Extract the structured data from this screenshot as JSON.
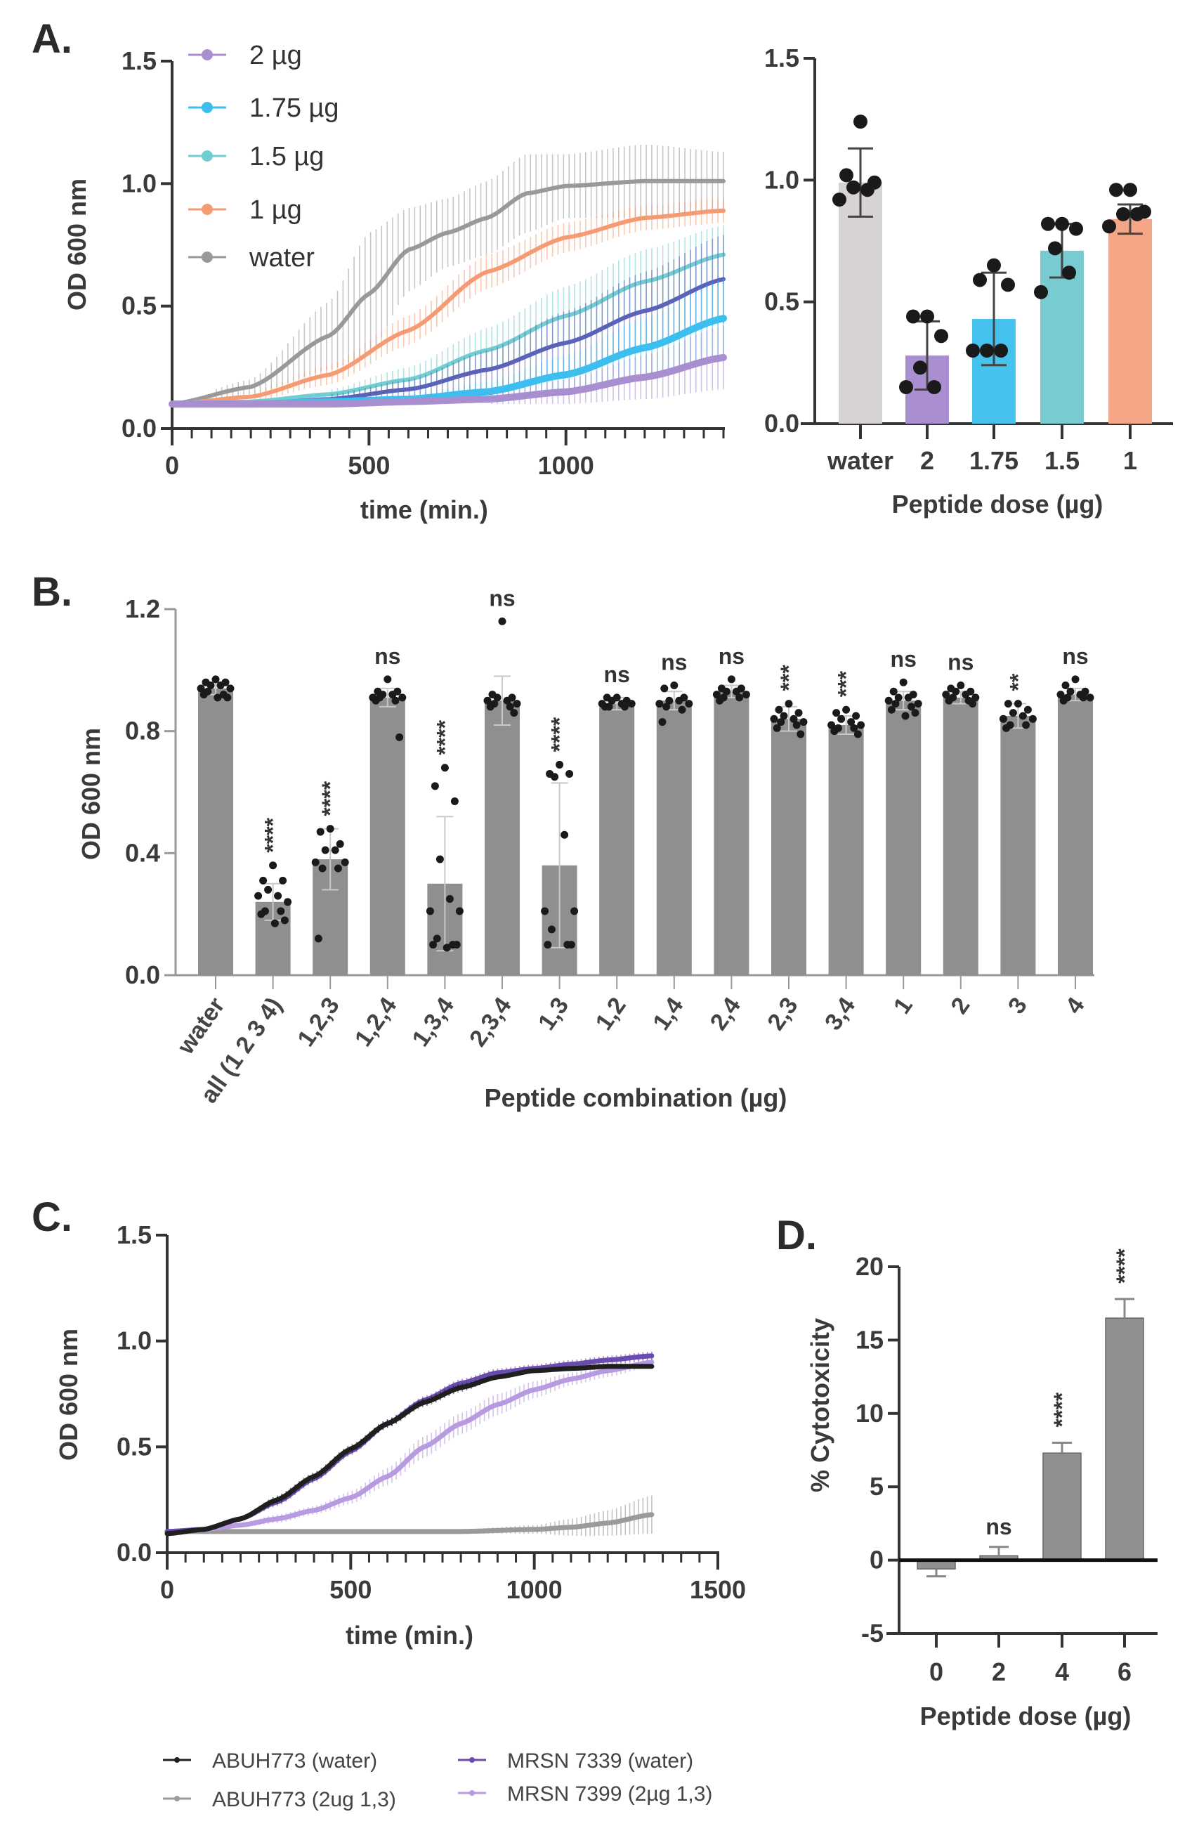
{
  "figure": {
    "panels": [
      "A.",
      "B.",
      "C.",
      "D."
    ]
  },
  "chart_data": [
    {
      "id": "A_left",
      "type": "line",
      "title": "",
      "xlabel": "time (min.)",
      "ylabel": "OD 600 nm",
      "xlim": [
        0,
        1400
      ],
      "ylim": [
        0,
        1.5
      ],
      "xticks": [
        0,
        500,
        1000
      ],
      "yticks": [
        "0.0",
        "0.5",
        "1.0",
        "1.5"
      ],
      "error_bars": true,
      "legend_position": "top-left",
      "series": [
        {
          "name": "2 µg",
          "color": "#a98fcf",
          "marker": "circle",
          "x": [
            0,
            200,
            400,
            600,
            800,
            1000,
            1200,
            1400
          ],
          "y": [
            0.1,
            0.1,
            0.1,
            0.11,
            0.12,
            0.15,
            0.21,
            0.29
          ],
          "err": [
            0.01,
            0.01,
            0.01,
            0.01,
            0.02,
            0.05,
            0.09,
            0.13
          ]
        },
        {
          "name": "1.75 µg",
          "color": "#3cbfef",
          "marker": "square",
          "x": [
            0,
            200,
            400,
            600,
            800,
            1000,
            1200,
            1400
          ],
          "y": [
            0.1,
            0.1,
            0.11,
            0.12,
            0.15,
            0.22,
            0.33,
            0.45
          ],
          "err": [
            0.01,
            0.01,
            0.01,
            0.02,
            0.04,
            0.08,
            0.12,
            0.16
          ]
        },
        {
          "name": "1.5 µg",
          "color": "#72cdd1",
          "marker": "triangle",
          "x": [
            0,
            200,
            400,
            600,
            800,
            1000,
            1200,
            1400
          ],
          "y": [
            0.1,
            0.11,
            0.14,
            0.2,
            0.32,
            0.46,
            0.6,
            0.71
          ],
          "err": [
            0.01,
            0.01,
            0.02,
            0.05,
            0.09,
            0.12,
            0.13,
            0.12
          ]
        },
        {
          "name": "1 µg",
          "color": "#f59b74",
          "marker": "triangle-down",
          "x": [
            0,
            200,
            400,
            600,
            800,
            1000,
            1200,
            1400
          ],
          "y": [
            0.1,
            0.13,
            0.22,
            0.4,
            0.64,
            0.78,
            0.86,
            0.89
          ],
          "err": [
            0.01,
            0.02,
            0.04,
            0.06,
            0.07,
            0.06,
            0.05,
            0.05
          ]
        },
        {
          "name": "water",
          "color": "#999999",
          "marker": "diamond",
          "x": [
            0,
            200,
            400,
            500,
            600,
            700,
            800,
            900,
            1000,
            1200,
            1400
          ],
          "y": [
            0.1,
            0.17,
            0.38,
            0.55,
            0.73,
            0.8,
            0.86,
            0.96,
            0.99,
            1.01,
            1.01
          ],
          "err": [
            0.01,
            0.03,
            0.14,
            0.25,
            0.17,
            0.14,
            0.15,
            0.16,
            0.13,
            0.15,
            0.12
          ]
        },
        {
          "name": "",
          "color": "#5b63b8",
          "marker": "none",
          "x": [
            0,
            200,
            400,
            600,
            800,
            1000,
            1200,
            1400
          ],
          "y": [
            0.1,
            0.1,
            0.12,
            0.16,
            0.24,
            0.35,
            0.48,
            0.61
          ],
          "err": [
            0.01,
            0.01,
            0.02,
            0.04,
            0.08,
            0.13,
            0.16,
            0.18
          ]
        }
      ]
    },
    {
      "id": "A_right",
      "type": "bar",
      "xlabel": "Peptide dose (µg)",
      "ylabel": "",
      "ylim": [
        0,
        1.5
      ],
      "yticks": [
        "0.0",
        "0.5",
        "1.0",
        "1.5"
      ],
      "categories": [
        "water",
        "2",
        "1.75",
        "1.5",
        "1"
      ],
      "colors": [
        "#d6d3d2",
        "#a98fcf",
        "#45c2ee",
        "#78ccd1",
        "#f5a686"
      ],
      "values": [
        0.99,
        0.28,
        0.43,
        0.71,
        0.84
      ],
      "err": [
        0.14,
        0.14,
        0.19,
        0.11,
        0.06
      ],
      "points": [
        [
          1.24,
          1.02,
          0.99,
          0.97,
          0.96,
          0.92
        ],
        [
          0.44,
          0.44,
          0.36,
          0.23,
          0.15,
          0.15
        ],
        [
          0.65,
          0.59,
          0.57,
          0.3,
          0.3,
          0.3
        ],
        [
          0.82,
          0.82,
          0.8,
          0.72,
          0.62,
          0.54
        ],
        [
          0.96,
          0.96,
          0.87,
          0.86,
          0.86,
          0.81
        ]
      ]
    },
    {
      "id": "B",
      "type": "bar",
      "xlabel": "Peptide combination (µg)",
      "ylabel": "OD 600 nm",
      "ylim": [
        0,
        1.2
      ],
      "yticks": [
        "0.0",
        "0.4",
        "0.8",
        "1.2"
      ],
      "color": "#8f8f8f",
      "categories": [
        "water",
        "all (1 2 3 4)",
        "1,2,3",
        "1,2,4",
        "1,3,4",
        "2,3,4",
        "1,3",
        "1,2",
        "1,4",
        "2,4",
        "2,3",
        "3,4",
        "1",
        "2",
        "3",
        "4"
      ],
      "values": [
        0.94,
        0.24,
        0.38,
        0.91,
        0.3,
        0.9,
        0.36,
        0.89,
        0.9,
        0.93,
        0.84,
        0.82,
        0.9,
        0.91,
        0.85,
        0.92
      ],
      "err": [
        0.02,
        0.06,
        0.1,
        0.03,
        0.22,
        0.08,
        0.27,
        0.02,
        0.03,
        0.02,
        0.04,
        0.03,
        0.03,
        0.02,
        0.04,
        0.02
      ],
      "annotations": [
        "",
        "****",
        "****",
        "ns",
        "****",
        "ns",
        "****",
        "ns",
        "ns",
        "ns",
        "***",
        "***",
        "ns",
        "ns",
        "**",
        "ns"
      ],
      "points": [
        [
          0.97,
          0.96,
          0.96,
          0.95,
          0.95,
          0.94,
          0.94,
          0.93,
          0.92,
          0.92,
          0.91,
          0.91
        ],
        [
          0.36,
          0.31,
          0.31,
          0.28,
          0.26,
          0.26,
          0.24,
          0.21,
          0.21,
          0.2,
          0.18,
          0.17
        ],
        [
          0.48,
          0.47,
          0.43,
          0.41,
          0.41,
          0.37,
          0.37,
          0.35,
          0.35,
          0.12
        ],
        [
          0.97,
          0.93,
          0.93,
          0.92,
          0.92,
          0.91,
          0.91,
          0.91,
          0.9,
          0.9,
          0.78
        ],
        [
          0.68,
          0.62,
          0.57,
          0.38,
          0.25,
          0.21,
          0.21,
          0.12,
          0.1,
          0.1,
          0.1,
          0.09
        ],
        [
          1.16,
          0.92,
          0.91,
          0.91,
          0.9,
          0.9,
          0.89,
          0.89,
          0.88,
          0.88,
          0.86
        ],
        [
          0.69,
          0.66,
          0.66,
          0.65,
          0.46,
          0.21,
          0.21,
          0.15,
          0.1,
          0.1,
          0.1
        ],
        [
          0.91,
          0.91,
          0.9,
          0.9,
          0.89,
          0.89,
          0.89,
          0.88,
          0.88,
          0.88
        ],
        [
          0.95,
          0.94,
          0.91,
          0.9,
          0.9,
          0.89,
          0.89,
          0.88,
          0.87,
          0.83
        ],
        [
          0.97,
          0.94,
          0.94,
          0.93,
          0.93,
          0.92,
          0.92,
          0.91,
          0.91,
          0.9
        ],
        [
          0.89,
          0.87,
          0.86,
          0.85,
          0.84,
          0.84,
          0.83,
          0.83,
          0.82,
          0.81,
          0.79
        ],
        [
          0.87,
          0.86,
          0.85,
          0.84,
          0.83,
          0.82,
          0.82,
          0.81,
          0.81,
          0.8,
          0.79
        ],
        [
          0.96,
          0.93,
          0.92,
          0.91,
          0.91,
          0.9,
          0.89,
          0.89,
          0.88,
          0.87,
          0.86,
          0.85
        ],
        [
          0.95,
          0.94,
          0.93,
          0.93,
          0.92,
          0.92,
          0.91,
          0.91,
          0.9,
          0.9,
          0.89
        ],
        [
          0.89,
          0.89,
          0.87,
          0.86,
          0.85,
          0.84,
          0.84,
          0.82,
          0.82,
          0.81
        ],
        [
          0.97,
          0.95,
          0.93,
          0.93,
          0.92,
          0.92,
          0.91,
          0.91,
          0.91,
          0.9
        ]
      ]
    },
    {
      "id": "C",
      "type": "line",
      "xlabel": "time (min.)",
      "ylabel": "OD 600 nm",
      "xlim": [
        0,
        1500
      ],
      "ylim": [
        0,
        1.5
      ],
      "xticks": [
        0,
        500,
        1000,
        1500
      ],
      "yticks": [
        "0.0",
        "0.5",
        "1.0",
        "1.5"
      ],
      "legend_position": "bottom",
      "series": [
        {
          "name": "ABUH773 (water)",
          "color": "#1f1f1f",
          "x": [
            0,
            100,
            200,
            300,
            400,
            500,
            600,
            700,
            800,
            900,
            1000,
            1100,
            1200,
            1320
          ],
          "y": [
            0.09,
            0.11,
            0.16,
            0.25,
            0.36,
            0.49,
            0.61,
            0.71,
            0.78,
            0.83,
            0.86,
            0.87,
            0.88,
            0.88
          ],
          "err": [
            0.01,
            0.01,
            0.01,
            0.02,
            0.02,
            0.02,
            0.02,
            0.02,
            0.02,
            0.01,
            0.01,
            0.01,
            0.01,
            0.01
          ]
        },
        {
          "name": "ABUH773 (2ug 1,3)",
          "color": "#9a9a9a",
          "x": [
            0,
            200,
            400,
            600,
            800,
            1000,
            1100,
            1200,
            1320
          ],
          "y": [
            0.1,
            0.1,
            0.1,
            0.1,
            0.1,
            0.11,
            0.12,
            0.14,
            0.18
          ],
          "err": [
            0.01,
            0.01,
            0.01,
            0.01,
            0.01,
            0.02,
            0.04,
            0.06,
            0.09
          ]
        },
        {
          "name": "MRSN 7339 (water)",
          "color": "#6a4bb0",
          "x": [
            0,
            100,
            200,
            300,
            400,
            500,
            600,
            700,
            800,
            900,
            1000,
            1100,
            1200,
            1320
          ],
          "y": [
            0.1,
            0.11,
            0.16,
            0.24,
            0.35,
            0.48,
            0.61,
            0.72,
            0.8,
            0.85,
            0.87,
            0.89,
            0.91,
            0.93
          ],
          "err": [
            0.01,
            0.01,
            0.01,
            0.02,
            0.02,
            0.02,
            0.02,
            0.02,
            0.02,
            0.02,
            0.02,
            0.02,
            0.02,
            0.02
          ]
        },
        {
          "name": "MRSN 7399 (2µg 1,3)",
          "color": "#b79ae0",
          "x": [
            0,
            100,
            200,
            300,
            400,
            500,
            600,
            700,
            800,
            900,
            1000,
            1100,
            1200,
            1320
          ],
          "y": [
            0.1,
            0.11,
            0.13,
            0.16,
            0.2,
            0.26,
            0.36,
            0.5,
            0.61,
            0.7,
            0.77,
            0.82,
            0.86,
            0.9
          ],
          "err": [
            0.01,
            0.01,
            0.01,
            0.02,
            0.02,
            0.03,
            0.04,
            0.05,
            0.05,
            0.05,
            0.04,
            0.03,
            0.03,
            0.02
          ]
        }
      ]
    },
    {
      "id": "D",
      "type": "bar",
      "xlabel": "Peptide dose (µg)",
      "ylabel": "% Cytotoxicity",
      "ylim": [
        -5,
        20
      ],
      "yticks": [
        "-5",
        "0",
        "5",
        "10",
        "15",
        "20"
      ],
      "color": "#909090",
      "categories": [
        "0",
        "2",
        "4",
        "6"
      ],
      "values": [
        -0.6,
        0.3,
        7.3,
        16.5
      ],
      "err": [
        0.5,
        0.6,
        0.7,
        1.3
      ],
      "annotations": [
        "",
        "ns",
        "****",
        "****"
      ]
    }
  ]
}
